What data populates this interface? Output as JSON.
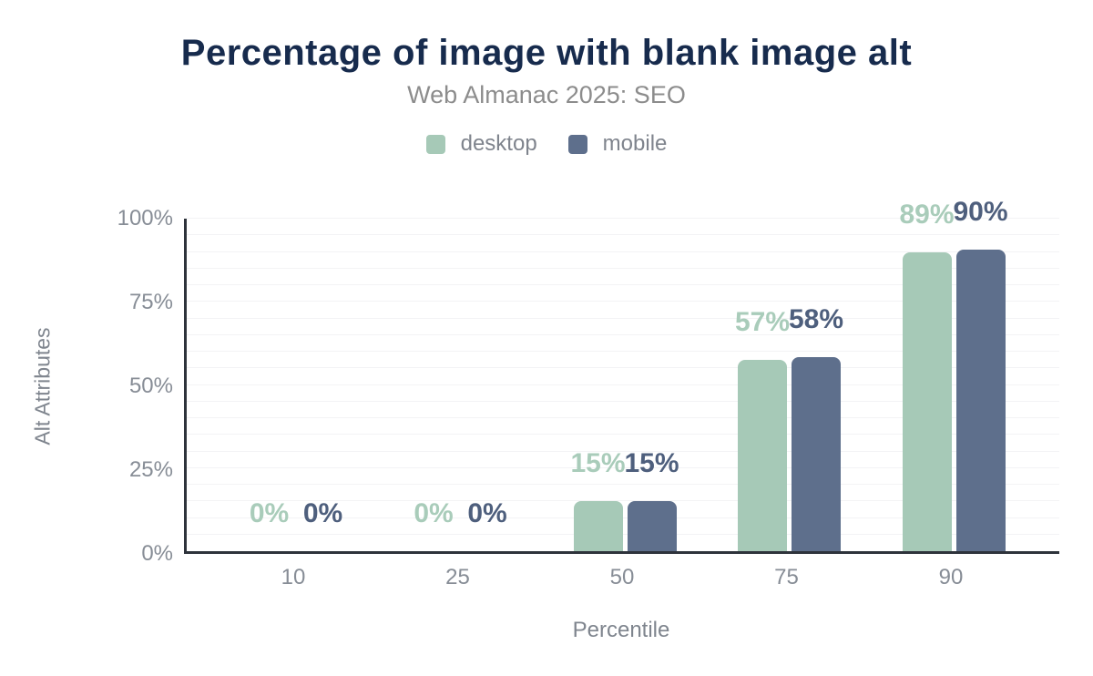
{
  "figure": {
    "title": "Percentage of image with blank image alt",
    "subtitle": "Web Almanac 2025: SEO"
  },
  "legend": {
    "items": [
      {
        "label": "desktop",
        "color": "#a6c9b7"
      },
      {
        "label": "mobile",
        "color": "#5e6f8c"
      }
    ]
  },
  "colors": {
    "title": "#172b4d",
    "subtitle": "#8c8c8c",
    "axis_line": "#2e333b",
    "gridline": "#f3f3f5",
    "tick_label": "#878d96",
    "axis_title": "#7f858e",
    "desktop_bar": "#a6c9b7",
    "desktop_label": "#a9ccba",
    "mobile_bar": "#5e6f8c",
    "mobile_label": "#4e5f7d"
  },
  "chart_data": {
    "type": "bar",
    "title": "Percentage of image with blank image alt",
    "subtitle": "Web Almanac 2025: SEO",
    "categories": [
      "10",
      "25",
      "50",
      "75",
      "90"
    ],
    "series": [
      {
        "name": "desktop",
        "color": "#a6c9b7",
        "label_color": "#a9ccba",
        "values": [
          0,
          0,
          15,
          57,
          89
        ],
        "labels": [
          "0%",
          "0%",
          "15%",
          "57%",
          "89%"
        ]
      },
      {
        "name": "mobile",
        "color": "#5e6f8c",
        "label_color": "#4e5f7d",
        "values": [
          0,
          0,
          15,
          58,
          90
        ],
        "labels": [
          "0%",
          "0%",
          "15%",
          "58%",
          "90%"
        ]
      }
    ],
    "xlabel": "Percentile",
    "ylabel": "Alt Attributes",
    "ylim": [
      0,
      100
    ],
    "y_ticks": [
      {
        "value": 0,
        "label": "0%"
      },
      {
        "value": 25,
        "label": "25%"
      },
      {
        "value": 50,
        "label": "50%"
      },
      {
        "value": 75,
        "label": "75%"
      },
      {
        "value": 100,
        "label": "100%"
      }
    ],
    "grid": {
      "on": true,
      "minor_step": 5
    },
    "legend_position": "top"
  }
}
